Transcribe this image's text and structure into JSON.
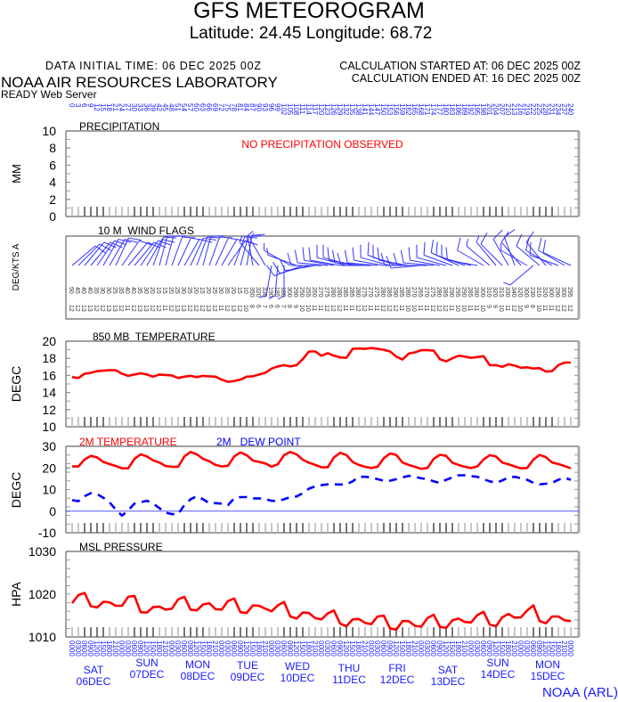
{
  "header": {
    "title": "GFS METEOROGRAM",
    "location": "Latitude: 24.45 Longitude:  68.72",
    "data_initial_time": "DATA INITIAL TIME: 06 DEC 2025 00Z",
    "calc_started": "CALCULATION STARTED AT: 06 DEC 2025 00Z",
    "calc_ended": "CALCULATION ENDED AT: 16 DEC 2025 00Z",
    "org": "NOAA AIR RESOURCES LABORATORY",
    "server": "READY Web Server"
  },
  "footer": {
    "credit": "NOAA (ARL)",
    "days": [
      {
        "dow": "SAT",
        "date": "06DEC"
      },
      {
        "dow": "SUN",
        "date": "07DEC"
      },
      {
        "dow": "MON",
        "date": "08DEC"
      },
      {
        "dow": "TUE",
        "date": "09DEC"
      },
      {
        "dow": "WED",
        "date": "10DEC"
      },
      {
        "dow": "THU",
        "date": "11DEC"
      },
      {
        "dow": "FRI",
        "date": "12DEC"
      },
      {
        "dow": "SAT",
        "date": "13DEC"
      },
      {
        "dow": "SUN",
        "date": "14DEC"
      },
      {
        "dow": "MON",
        "date": "15DEC"
      }
    ]
  },
  "colors": {
    "temp": "#ff0000",
    "dew": "#0000ff",
    "label": "#1a1aff",
    "axis": "#555555",
    "tick_gray": "#b8b8b8"
  },
  "forecast_hours": [
    0,
    3,
    6,
    9,
    12,
    15,
    18,
    21,
    24,
    27,
    30,
    33,
    36,
    39,
    42,
    45,
    48,
    51,
    54,
    57,
    60,
    63,
    66,
    69,
    72,
    75,
    78,
    81,
    84,
    87,
    90,
    93,
    96,
    99,
    102,
    105,
    108,
    111,
    114,
    117,
    120,
    123,
    126,
    129,
    132,
    135,
    138,
    141,
    144,
    147,
    150,
    153,
    156,
    159,
    162,
    165,
    168,
    171,
    174,
    177,
    180,
    183,
    186,
    189,
    192,
    195,
    198,
    201,
    204,
    207,
    210,
    213,
    216,
    219,
    222,
    225,
    228,
    231,
    234,
    237,
    240
  ],
  "chart_data": [
    {
      "type": "line",
      "title": "PRECIPITATION",
      "ylabel": "MM",
      "ylim": [
        0,
        10
      ],
      "yticks": [
        "0",
        "2",
        "4",
        "6",
        "8",
        "10"
      ],
      "annotation": "NO PRECIPITATION OBSERVED",
      "series": []
    },
    {
      "type": "wind-barbs",
      "title": "10 M  WIND FLAGS",
      "ylabel": "DEG/KTS A",
      "direction_deg": [
        50,
        45,
        40,
        40,
        35,
        30,
        30,
        25,
        35,
        40,
        40,
        35,
        30,
        20,
        15,
        15,
        20,
        25,
        30,
        25,
        20,
        15,
        20,
        25,
        30,
        35,
        20,
        15,
        10,
        350,
        320,
        330,
        190,
        185,
        180,
        300,
        290,
        250,
        255,
        260,
        270,
        275,
        280,
        280,
        285,
        285,
        280,
        275,
        270,
        275,
        280,
        285,
        290,
        285,
        280,
        270,
        265,
        270,
        275,
        280,
        285,
        290,
        295,
        290,
        285,
        280,
        300,
        310,
        320,
        315,
        330,
        340,
        320,
        300,
        230,
        310,
        320,
        300,
        290,
        300,
        295
      ],
      "speed_kts": [
        12,
        12,
        13,
        13,
        12,
        12,
        13,
        13,
        12,
        11,
        12,
        13,
        13,
        12,
        12,
        11,
        12,
        13,
        13,
        12,
        12,
        12,
        13,
        12,
        11,
        12,
        13,
        12,
        10,
        8,
        6,
        7,
        6,
        6,
        7,
        8,
        9,
        10,
        10,
        11,
        11,
        12,
        12,
        12,
        11,
        11,
        12,
        12,
        11,
        11,
        12,
        12,
        12,
        11,
        10,
        10,
        11,
        11,
        12,
        12,
        12,
        11,
        10,
        10,
        11,
        11,
        10,
        9,
        9,
        10,
        11,
        12,
        10,
        9,
        8,
        10,
        11,
        11,
        12,
        12,
        12
      ]
    },
    {
      "type": "line",
      "title": "850 MB  TEMPERATURE",
      "ylabel": "DEGC",
      "ylim": [
        10,
        20
      ],
      "yticks": [
        "10",
        "12",
        "14",
        "16",
        "18",
        "20"
      ],
      "series": [
        {
          "name": "850 MB TEMPERATURE",
          "values": [
            15.8,
            15.7,
            16.2,
            16.3,
            16.5,
            16.55,
            16.6,
            16.6,
            16.2,
            15.95,
            16.1,
            16.25,
            16.1,
            15.85,
            16.1,
            16.05,
            16.0,
            15.7,
            15.85,
            15.95,
            15.8,
            15.95,
            15.9,
            15.85,
            15.5,
            15.25,
            15.35,
            15.5,
            15.85,
            15.9,
            16.1,
            16.3,
            16.8,
            17.05,
            17.2,
            17.05,
            17.2,
            17.9,
            18.8,
            18.8,
            18.3,
            18.6,
            18.3,
            18.1,
            18.05,
            19.1,
            19.15,
            19.1,
            19.2,
            19.1,
            19.0,
            18.8,
            18.2,
            17.85,
            18.55,
            18.7,
            18.95,
            18.95,
            18.9,
            17.9,
            17.65,
            18.0,
            18.3,
            18.2,
            18.05,
            18.15,
            18.25,
            17.2,
            17.2,
            17.0,
            17.3,
            17.15,
            16.9,
            16.95,
            16.8,
            16.85,
            16.45,
            16.5,
            17.2,
            17.5,
            17.5
          ]
        }
      ]
    },
    {
      "type": "line",
      "title": "2M TEMPERATURE",
      "title2": "2M   DEW POINT",
      "ylabel": "DEGC",
      "ylim": [
        -10,
        30
      ],
      "yticks": [
        "-10",
        "0",
        "10",
        "20",
        "30"
      ],
      "series": [
        {
          "name": "2M TEMPERATURE",
          "values": [
            20.7,
            20.7,
            23.9,
            25.6,
            24.9,
            22.8,
            21.8,
            20.9,
            19.8,
            19.8,
            24.2,
            26.3,
            25.3,
            23.5,
            22.5,
            20.9,
            20.5,
            20.5,
            25.3,
            27.4,
            26.3,
            24.2,
            23.1,
            21.4,
            20.7,
            21.0,
            25.3,
            27.2,
            25.9,
            23.4,
            22.8,
            22.1,
            20.6,
            21.7,
            25.9,
            27.4,
            26.3,
            23.8,
            22.4,
            21.4,
            20.3,
            20.3,
            24.9,
            27.0,
            26.0,
            22.8,
            21.4,
            20.5,
            20.0,
            20.5,
            24.5,
            26.7,
            26.0,
            22.5,
            21.4,
            20.5,
            19.6,
            20.0,
            24.2,
            26.1,
            25.6,
            22.4,
            21.4,
            20.5,
            20.0,
            20.7,
            23.9,
            25.9,
            25.3,
            22.5,
            21.7,
            20.7,
            19.8,
            20.0,
            23.9,
            26.0,
            25.0,
            22.5,
            21.8,
            20.9,
            19.8
          ]
        },
        {
          "name": "2M DEW POINT",
          "values": [
            5.1,
            4.6,
            6.9,
            8.3,
            7.9,
            6.2,
            4.1,
            0.7,
            -2.1,
            0.4,
            3.5,
            4.1,
            4.8,
            3.5,
            1.4,
            -0.7,
            -1.4,
            -1.4,
            2.8,
            5.5,
            6.9,
            5.5,
            3.7,
            3.7,
            3.5,
            2.8,
            5.9,
            6.5,
            6.5,
            5.9,
            5.9,
            5.5,
            4.8,
            4.6,
            5.5,
            6.5,
            6.8,
            8.3,
            10.4,
            11.5,
            12.0,
            12.4,
            12.4,
            12.3,
            12.4,
            13.8,
            15.9,
            15.9,
            15.6,
            14.8,
            14.1,
            14.1,
            14.8,
            15.6,
            16.3,
            15.9,
            15.2,
            14.8,
            13.8,
            13.1,
            14.5,
            15.6,
            16.6,
            16.6,
            16.2,
            15.9,
            14.8,
            13.8,
            13.1,
            14.2,
            15.6,
            15.9,
            15.2,
            14.5,
            13.1,
            12.4,
            12.7,
            13.1,
            14.5,
            15.5,
            14.5
          ]
        }
      ]
    },
    {
      "type": "line",
      "title": "MSL PRESSURE",
      "ylabel": "HPA",
      "ylim": [
        1010,
        1030
      ],
      "yticks": [
        "1010",
        "1020",
        "1030"
      ],
      "series": [
        {
          "name": "MSL PRESSURE",
          "values": [
            1017.9,
            1019.8,
            1020.3,
            1017.2,
            1016.9,
            1018.2,
            1018.1,
            1017.3,
            1017.3,
            1019.4,
            1019.6,
            1015.8,
            1015.7,
            1017.0,
            1017.1,
            1016.4,
            1016.6,
            1018.8,
            1019.4,
            1016.4,
            1016.2,
            1017.6,
            1017.9,
            1016.5,
            1016.4,
            1018.4,
            1019.0,
            1015.8,
            1015.6,
            1017.4,
            1017.3,
            1016.6,
            1016.0,
            1017.4,
            1018.2,
            1014.8,
            1014.3,
            1015.7,
            1015.6,
            1014.4,
            1014.1,
            1015.5,
            1016.2,
            1013.1,
            1012.5,
            1014.1,
            1014.2,
            1013.3,
            1013.0,
            1014.8,
            1015.0,
            1012.0,
            1011.7,
            1013.7,
            1013.7,
            1012.6,
            1012.4,
            1014.4,
            1015.2,
            1012.4,
            1012.1,
            1013.9,
            1014.3,
            1013.5,
            1013.4,
            1015.1,
            1015.9,
            1012.9,
            1012.5,
            1014.6,
            1015.4,
            1014.5,
            1014.6,
            1016.2,
            1017.4,
            1013.7,
            1013.2,
            1014.8,
            1014.8,
            1013.9,
            1013.7
          ]
        }
      ]
    }
  ]
}
